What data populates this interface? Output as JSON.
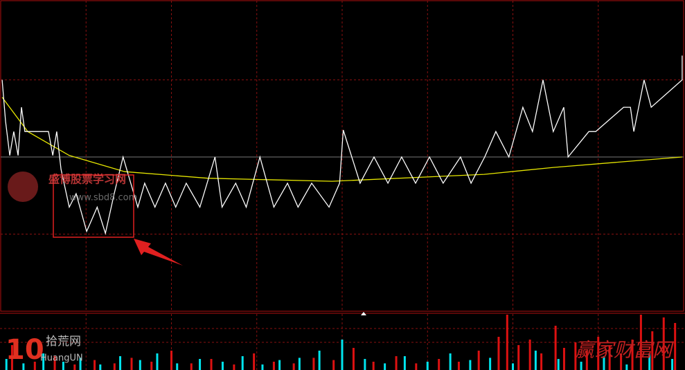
{
  "chart_data": {
    "type": "intraday",
    "xlim": [
      0,
      240
    ],
    "xticks": [
      30,
      60,
      90,
      120,
      150,
      180,
      210
    ],
    "ylim": [
      -4,
      4
    ],
    "yticks": [
      -2,
      2
    ],
    "baseline": 0,
    "price": {
      "color": "#ffffff",
      "x": [
        0.5,
        1.7,
        3.2,
        4.6,
        6.1,
        7.3,
        8.5,
        16.8,
        18.3,
        19.7,
        21.2,
        24.1,
        26.5,
        30.2,
        33.9,
        36.8,
        39.9,
        43.0,
        45.7,
        48.2,
        50.6,
        54.2,
        57.9,
        61.5,
        65.2,
        70.0,
        75.3,
        77.8,
        82.6,
        86.3,
        91.1,
        96.0,
        100.8,
        104.5,
        109.3,
        115.4,
        119.1,
        120.4,
        126.3,
        131.2,
        136.1,
        140.9,
        145.8,
        150.7,
        155.5,
        161.6,
        165.3,
        170.1,
        174.0,
        178.6,
        183.5,
        186.9,
        190.6,
        194.2,
        197.9,
        199.4,
        206.7,
        209.1,
        218.9,
        221.3,
        222.5,
        226.1,
        228.6,
        239.5,
        239.5
      ],
      "values": [
        2.0,
        0.93,
        0.04,
        0.66,
        0.04,
        1.29,
        0.66,
        0.66,
        0.04,
        0.66,
        -0.32,
        -1.3,
        -0.95,
        -1.93,
        -1.3,
        -1.98,
        -0.95,
        0,
        -0.68,
        -1.3,
        -0.68,
        -1.3,
        -0.68,
        -1.3,
        -0.68,
        -1.3,
        0,
        -1.3,
        -0.68,
        -1.3,
        0,
        -1.3,
        -0.68,
        -1.3,
        -0.68,
        -1.3,
        -0.68,
        0.7,
        -0.68,
        0,
        -0.68,
        0,
        -0.68,
        0,
        -0.68,
        0,
        -0.68,
        0,
        0.66,
        0,
        1.29,
        0.66,
        2.0,
        0.66,
        1.29,
        0,
        0.66,
        0.66,
        1.29,
        1.29,
        0.66,
        2.0,
        1.29,
        2.0,
        2.63
      ]
    },
    "average": {
      "color": "#e6e600",
      "x": [
        0.5,
        9.5,
        24.1,
        43.6,
        72.7,
        116.5,
        169.9,
        194.2,
        239.5
      ],
      "values": [
        1.55,
        0.66,
        0.04,
        -0.38,
        -0.55,
        -0.63,
        -0.45,
        -0.27,
        0
      ]
    },
    "volume_ylim": [
      0,
      100
    ],
    "volume_yticks": [
      50,
      75
    ],
    "volume_down": {
      "color": "#00e5ee",
      "x": [
        2,
        8,
        15,
        22,
        28,
        35,
        42,
        49,
        55,
        62,
        70,
        78,
        85,
        92,
        98,
        105,
        112,
        120,
        128,
        135,
        142,
        150,
        158,
        165,
        172,
        180,
        188,
        196,
        204,
        212,
        220,
        228,
        236
      ],
      "values": [
        20,
        12,
        30,
        15,
        22,
        10,
        25,
        18,
        30,
        12,
        20,
        15,
        25,
        10,
        18,
        22,
        35,
        55,
        20,
        12,
        25,
        15,
        30,
        18,
        22,
        12,
        35,
        20,
        15,
        25,
        10,
        30,
        20
      ]
    },
    "volume_up": {
      "color": "#dd1111",
      "x": [
        4,
        12,
        19,
        26,
        33,
        40,
        46,
        53,
        60,
        67,
        74,
        82,
        89,
        96,
        103,
        110,
        117,
        124,
        131,
        139,
        146,
        154,
        161,
        168,
        175,
        178,
        182,
        186,
        190,
        195,
        198,
        202,
        206,
        210,
        214,
        218,
        222,
        225,
        229,
        233,
        237
      ],
      "values": [
        45,
        15,
        25,
        10,
        18,
        12,
        22,
        15,
        35,
        12,
        20,
        10,
        30,
        15,
        12,
        22,
        18,
        40,
        15,
        25,
        12,
        20,
        15,
        35,
        60,
        100,
        45,
        55,
        30,
        80,
        40,
        50,
        35,
        60,
        45,
        30,
        55,
        100,
        70,
        95,
        85
      ]
    }
  },
  "watermarks": {
    "site": "盛博股票学习网",
    "url": "www.sbd8.com",
    "number": "10",
    "brand": "拾荒网",
    "brand_latin": "HuangUN",
    "corner": "赢家财富网"
  }
}
